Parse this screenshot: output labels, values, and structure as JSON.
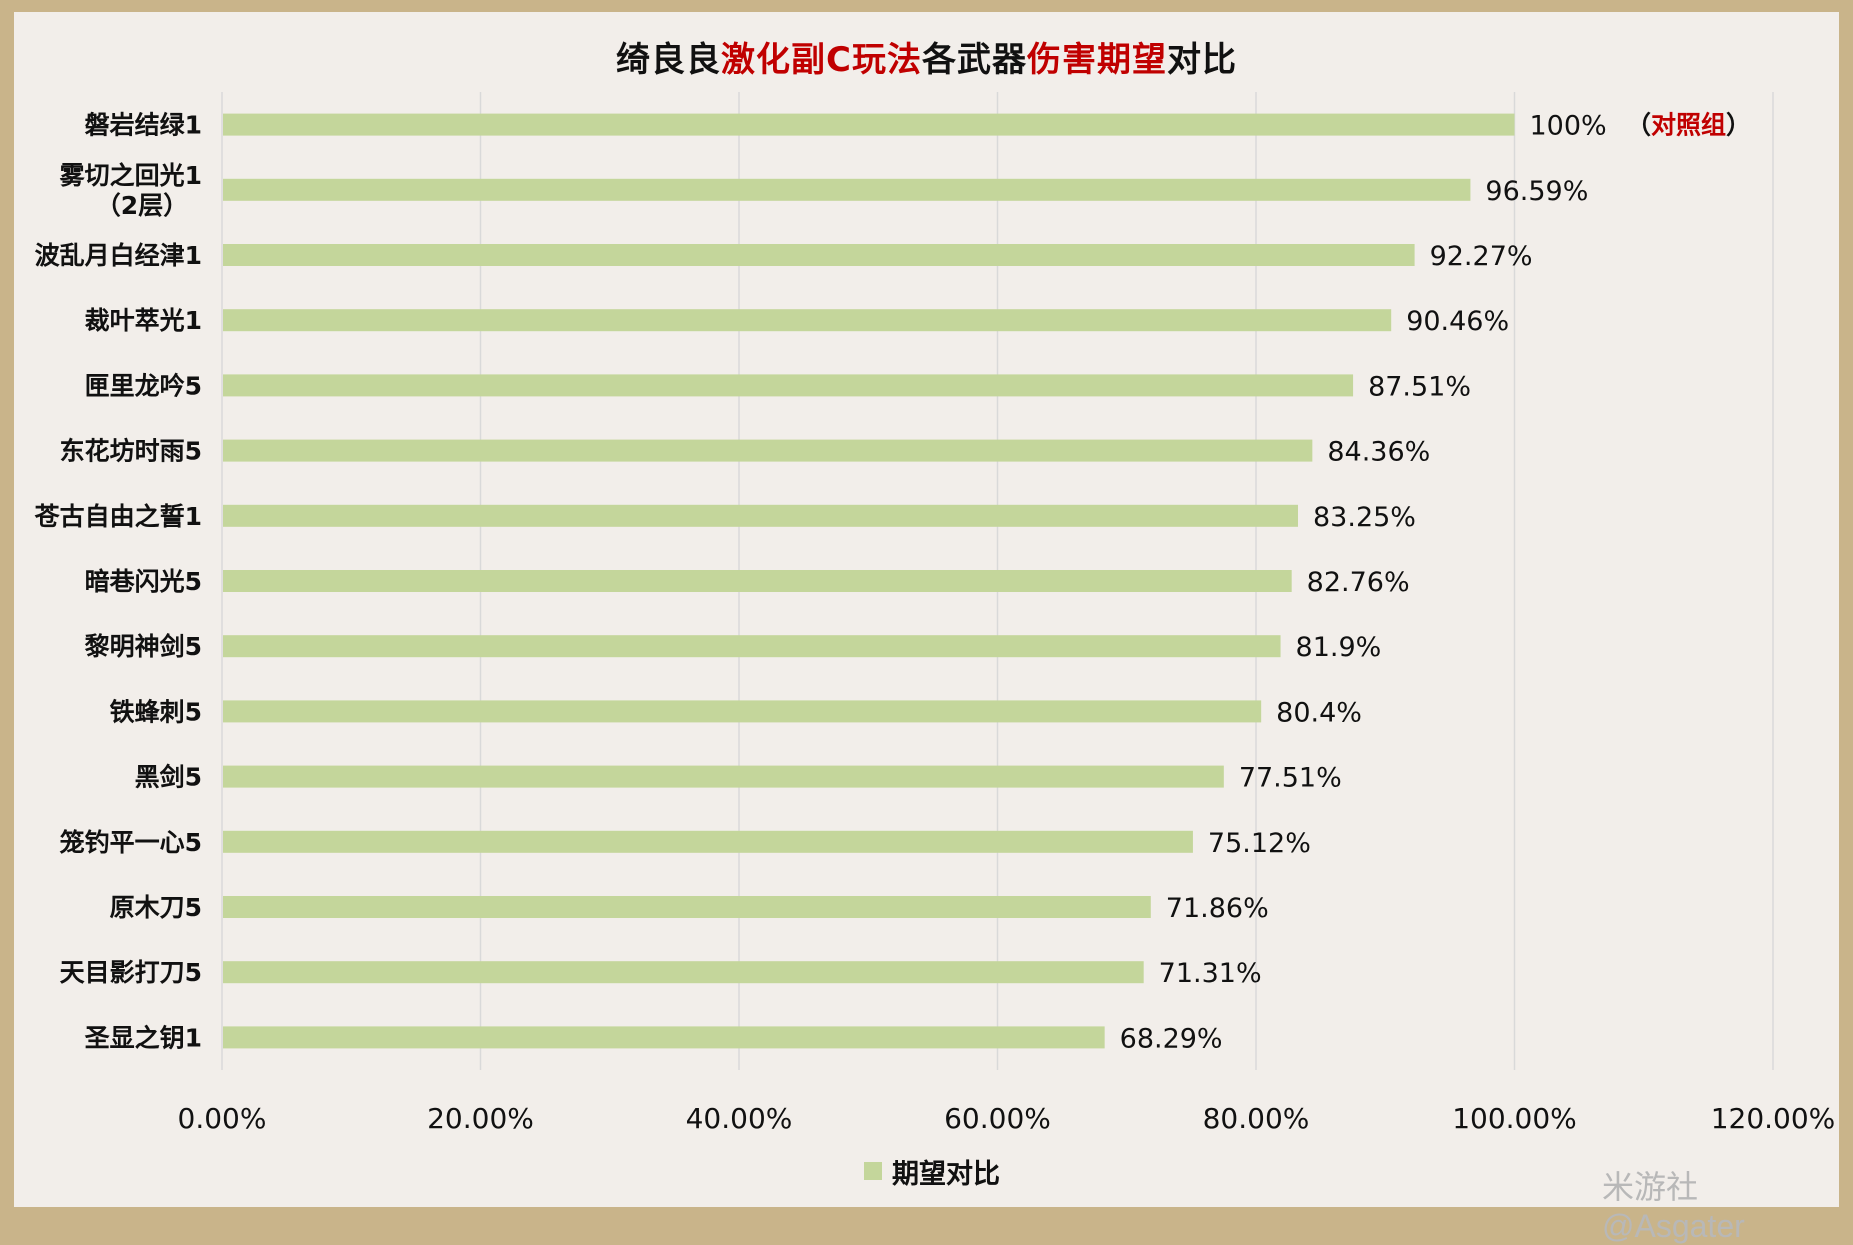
{
  "title": {
    "segments": [
      {
        "text": "绮良良",
        "highlight": false
      },
      {
        "text": "激化副C玩法",
        "highlight": true
      },
      {
        "text": "各武器",
        "highlight": false
      },
      {
        "text": "伤害期望",
        "highlight": true
      },
      {
        "text": "对比",
        "highlight": false
      }
    ]
  },
  "colors": {
    "bar": "#c4d69b",
    "title_highlight": "#c00000",
    "grid": "#d9d9d9",
    "background": "#f2eeea",
    "frame": "#c9b48a"
  },
  "chart_data": {
    "type": "bar",
    "orientation": "horizontal",
    "categories": [
      [
        "磐岩结绿1"
      ],
      [
        "雾切之回光1",
        "（2层）"
      ],
      [
        "波乱月白经津1"
      ],
      [
        "裁叶萃光1"
      ],
      [
        "匣里龙吟5"
      ],
      [
        "东花坊时雨5"
      ],
      [
        "苍古自由之誓1"
      ],
      [
        "暗巷闪光5"
      ],
      [
        "黎明神剑5"
      ],
      [
        "铁蜂刺5"
      ],
      [
        "黑剑5"
      ],
      [
        "笼钓平一心5"
      ],
      [
        "原木刀5"
      ],
      [
        "天目影打刀5"
      ],
      [
        "圣显之钥1"
      ]
    ],
    "series": [
      {
        "name": "期望对比",
        "values": [
          100,
          96.59,
          92.27,
          90.46,
          87.51,
          84.36,
          83.25,
          82.76,
          81.9,
          80.4,
          77.51,
          75.12,
          71.86,
          71.31,
          68.29
        ],
        "labels": [
          "100%",
          "96.59%",
          "92.27%",
          "90.46%",
          "87.51%",
          "84.36%",
          "83.25%",
          "82.76%",
          "81.9%",
          "80.4%",
          "77.51%",
          "75.12%",
          "71.86%",
          "71.31%",
          "68.29%"
        ]
      }
    ],
    "annotations": [
      {
        "category_index": 0,
        "open": "（",
        "text": "对照组",
        "close": "）"
      }
    ],
    "xlim": [
      0,
      120
    ],
    "xticks": [
      0,
      20,
      40,
      60,
      80,
      100,
      120
    ],
    "xtick_labels": [
      "0.00%",
      "20.00%",
      "40.00%",
      "60.00%",
      "80.00%",
      "100.00%",
      "120.00%"
    ],
    "grid": true,
    "legend_position": "bottom"
  },
  "legend": {
    "label": "期望对比"
  },
  "watermark": "米游社@Asgater"
}
